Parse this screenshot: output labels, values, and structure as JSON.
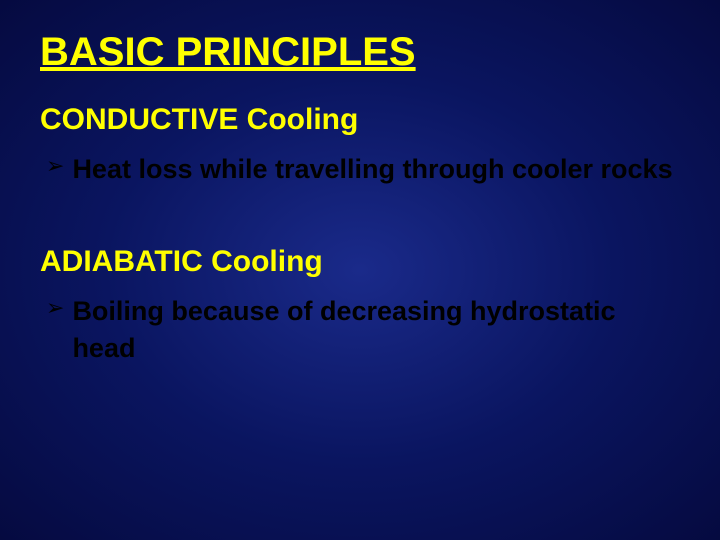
{
  "slide": {
    "background": {
      "gradient_center": "#1a2a8a",
      "gradient_mid": "#0a1560",
      "gradient_edge": "#050a40"
    },
    "title": {
      "text": "BASIC PRINCIPLES",
      "color": "#ffff00",
      "fontsize": 40,
      "fontweight": "bold",
      "underline": true
    },
    "sections": [
      {
        "heading": {
          "text": "CONDUCTIVE Cooling",
          "color": "#ffff00",
          "fontsize": 30,
          "fontweight": "bold"
        },
        "bullets": [
          {
            "marker": "➢",
            "text": "Heat loss while travelling through cooler rocks",
            "color": "#000000",
            "fontsize": 27,
            "fontweight": "bold"
          }
        ]
      },
      {
        "heading": {
          "text": "ADIABATIC Cooling",
          "color": "#ffff00",
          "fontsize": 30,
          "fontweight": "bold"
        },
        "bullets": [
          {
            "marker": "➢",
            "text": "Boiling because of decreasing hydrostatic head",
            "color": "#000000",
            "fontsize": 27,
            "fontweight": "bold"
          }
        ]
      }
    ]
  }
}
